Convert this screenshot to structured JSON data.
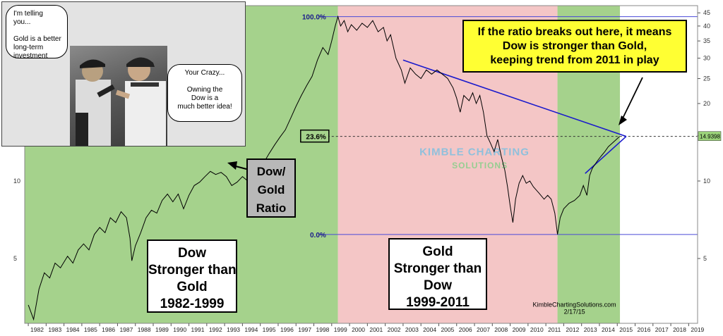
{
  "chart_data": {
    "type": "line",
    "title": "",
    "xlabel": "",
    "ylabel": "",
    "scale": "log",
    "x_ticks": [
      "1982",
      "1983",
      "1984",
      "1985",
      "1986",
      "1987",
      "1988",
      "1989",
      "1990",
      "1991",
      "1992",
      "1993",
      "1994",
      "1995",
      "1996",
      "1997",
      "1998",
      "1999",
      "2000",
      "2001",
      "2002",
      "2003",
      "2004",
      "2005",
      "2006",
      "2007",
      "2008",
      "2009",
      "2010",
      "2011",
      "2012",
      "2013",
      "2014",
      "2015",
      "2016",
      "2017",
      "2018",
      "2019"
    ],
    "x_range": [
      1981.8,
      2019.5
    ],
    "y_range": [
      2.8,
      48
    ],
    "right_ticks": [
      "45",
      "40",
      "35",
      "30",
      "25",
      "20",
      "15",
      "10",
      "5"
    ],
    "left_ticks": [
      "10",
      "5"
    ],
    "series": [
      {
        "values": [
          [
            1982.0,
            3.3
          ],
          [
            1982.3,
            2.9
          ],
          [
            1982.6,
            3.8
          ],
          [
            1982.9,
            4.4
          ],
          [
            1983.2,
            4.2
          ],
          [
            1983.5,
            4.8
          ],
          [
            1983.8,
            4.6
          ],
          [
            1984.2,
            5.1
          ],
          [
            1984.5,
            4.8
          ],
          [
            1984.8,
            5.4
          ],
          [
            1985.1,
            5.7
          ],
          [
            1985.4,
            5.4
          ],
          [
            1985.7,
            6.2
          ],
          [
            1986.0,
            6.6
          ],
          [
            1986.3,
            6.3
          ],
          [
            1986.6,
            7.2
          ],
          [
            1986.9,
            6.9
          ],
          [
            1987.2,
            7.6
          ],
          [
            1987.5,
            7.2
          ],
          [
            1987.7,
            6.0
          ],
          [
            1987.8,
            4.9
          ],
          [
            1988.0,
            5.6
          ],
          [
            1988.3,
            6.3
          ],
          [
            1988.6,
            7.2
          ],
          [
            1988.9,
            7.7
          ],
          [
            1989.2,
            7.5
          ],
          [
            1989.5,
            8.4
          ],
          [
            1989.8,
            8.9
          ],
          [
            1990.1,
            8.3
          ],
          [
            1990.4,
            8.9
          ],
          [
            1990.7,
            7.8
          ],
          [
            1991.0,
            8.8
          ],
          [
            1991.3,
            9.6
          ],
          [
            1991.6,
            9.9
          ],
          [
            1991.9,
            10.4
          ],
          [
            1992.2,
            10.9
          ],
          [
            1992.5,
            10.6
          ],
          [
            1992.8,
            10.8
          ],
          [
            1993.1,
            10.4
          ],
          [
            1993.4,
            9.6
          ],
          [
            1993.7,
            9.9
          ],
          [
            1994.0,
            10.4
          ],
          [
            1994.3,
            10.0
          ],
          [
            1994.6,
            10.6
          ],
          [
            1994.9,
            10.8
          ],
          [
            1995.2,
            11.8
          ],
          [
            1995.5,
            12.8
          ],
          [
            1995.8,
            13.8
          ],
          [
            1996.1,
            14.8
          ],
          [
            1996.4,
            15.8
          ],
          [
            1996.7,
            17.5
          ],
          [
            1997.0,
            19.5
          ],
          [
            1997.3,
            21.5
          ],
          [
            1997.6,
            23.5
          ],
          [
            1997.9,
            25.5
          ],
          [
            1998.2,
            29.5
          ],
          [
            1998.5,
            33.0
          ],
          [
            1998.8,
            31.0
          ],
          [
            1999.0,
            35.0
          ],
          [
            1999.2,
            40.0
          ],
          [
            1999.35,
            43.5
          ],
          [
            1999.5,
            40.0
          ],
          [
            1999.7,
            42.0
          ],
          [
            1999.9,
            38.0
          ],
          [
            2000.1,
            40.5
          ],
          [
            2000.4,
            38.5
          ],
          [
            2000.7,
            41.0
          ],
          [
            2001.0,
            39.5
          ],
          [
            2001.3,
            42.0
          ],
          [
            2001.6,
            38.0
          ],
          [
            2001.9,
            39.5
          ],
          [
            2002.1,
            35.0
          ],
          [
            2002.3,
            37.0
          ],
          [
            2002.6,
            30.0
          ],
          [
            2002.9,
            27.0
          ],
          [
            2003.1,
            24.0
          ],
          [
            2003.4,
            27.5
          ],
          [
            2003.7,
            26.0
          ],
          [
            2004.0,
            25.0
          ],
          [
            2004.3,
            27.0
          ],
          [
            2004.6,
            26.0
          ],
          [
            2004.9,
            27.0
          ],
          [
            2005.2,
            26.0
          ],
          [
            2005.5,
            25.0
          ],
          [
            2005.8,
            23.0
          ],
          [
            2006.0,
            21.0
          ],
          [
            2006.2,
            18.5
          ],
          [
            2006.4,
            21.5
          ],
          [
            2006.7,
            20.5
          ],
          [
            2006.9,
            22.0
          ],
          [
            2007.1,
            20.0
          ],
          [
            2007.3,
            21.5
          ],
          [
            2007.5,
            18.5
          ],
          [
            2007.7,
            15.0
          ],
          [
            2007.9,
            14.0
          ],
          [
            2008.1,
            13.0
          ],
          [
            2008.3,
            14.5
          ],
          [
            2008.5,
            12.5
          ],
          [
            2008.7,
            11.0
          ],
          [
            2008.85,
            9.5
          ],
          [
            2009.0,
            8.0
          ],
          [
            2009.15,
            6.9
          ],
          [
            2009.3,
            8.5
          ],
          [
            2009.5,
            9.8
          ],
          [
            2009.7,
            10.5
          ],
          [
            2009.9,
            9.8
          ],
          [
            2010.1,
            10.0
          ],
          [
            2010.3,
            9.5
          ],
          [
            2010.6,
            9.0
          ],
          [
            2010.9,
            8.5
          ],
          [
            2011.1,
            8.8
          ],
          [
            2011.3,
            8.5
          ],
          [
            2011.5,
            7.5
          ],
          [
            2011.65,
            6.2
          ],
          [
            2011.8,
            7.2
          ],
          [
            2012.0,
            7.8
          ],
          [
            2012.3,
            8.2
          ],
          [
            2012.6,
            8.4
          ],
          [
            2012.9,
            8.8
          ],
          [
            2013.1,
            9.6
          ],
          [
            2013.3,
            8.8
          ],
          [
            2013.45,
            10.5
          ],
          [
            2013.6,
            11.2
          ],
          [
            2013.9,
            12.0
          ],
          [
            2014.1,
            12.5
          ],
          [
            2014.3,
            13.0
          ],
          [
            2014.5,
            13.6
          ],
          [
            2014.7,
            14.0
          ],
          [
            2014.9,
            14.4
          ],
          [
            2015.13,
            14.9
          ]
        ]
      }
    ],
    "fib_levels": [
      {
        "label": "100.0%",
        "y": 43.5,
        "x_start": 1999.0
      },
      {
        "label": "23.6%",
        "y": 14.9,
        "x_start": 1999.0
      },
      {
        "label": "0.0%",
        "y": 6.2,
        "x_start": 1999.0
      }
    ],
    "shaded_regions": [
      {
        "from": 1981.8,
        "to": 1999.35,
        "color": "#a5d28c"
      },
      {
        "from": 1999.35,
        "to": 2011.65,
        "color": "#f4c6c6"
      },
      {
        "from": 2011.65,
        "to": 2015.15,
        "color": "#a5d28c"
      }
    ],
    "trendlines": [
      {
        "from": [
          2003.0,
          29.5
        ],
        "to": [
          2015.5,
          14.9
        ]
      },
      {
        "from": [
          2013.2,
          10.7
        ],
        "to": [
          2015.5,
          14.9
        ]
      }
    ],
    "current_value_label": "14.9398",
    "watermark_line1": "KIMBLE CHARTING",
    "watermark_line2": "SOLUTIONS",
    "credit_site": "KimbleChartingSolutions.com",
    "credit_date": "2/17/15"
  },
  "annotations": {
    "callout": [
      "If the ratio breaks out here, it means",
      "Dow is stronger than Gold,",
      "keeping trend from 2011 in play"
    ],
    "ratio_label": [
      "Dow/",
      "Gold",
      "Ratio"
    ],
    "dow_era": [
      "Dow",
      "Stronger than",
      "Gold",
      "1982-1999"
    ],
    "gold_era": [
      "Gold",
      "Stronger than",
      "Dow",
      "1999-2011"
    ],
    "cartoon_left": [
      "I'm telling",
      "you...",
      "",
      "Gold is a better",
      "long-term",
      "investment"
    ],
    "cartoon_right": [
      "Your Crazy...",
      "",
      "Owning the",
      "Dow is a",
      "much better idea!"
    ]
  },
  "colors": {
    "green_zone": "#a5d28c",
    "red_zone": "#f4c6c6",
    "price_line": "#000000",
    "trendline": "#1a1acc",
    "fib_line": "#4a4ad8",
    "callout_bg": "#ffff33"
  }
}
